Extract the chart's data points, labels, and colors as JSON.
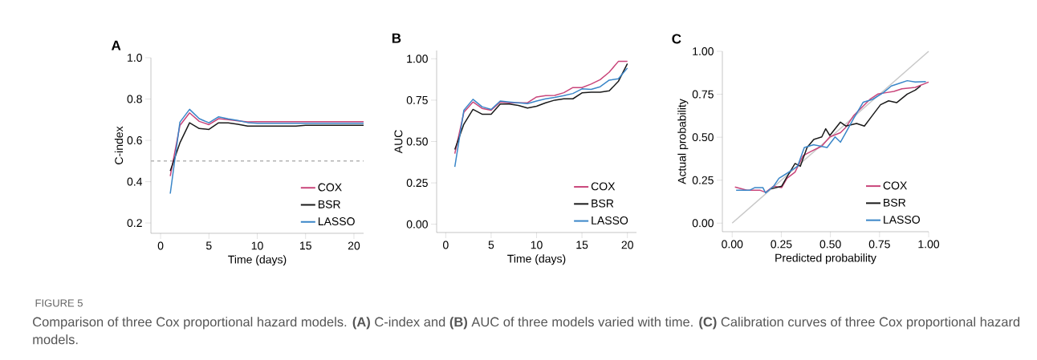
{
  "chart_data": [
    {
      "type": "line",
      "title": "A",
      "xlabel": "Time (days)",
      "ylabel": "C-index",
      "x": [
        1,
        2,
        3,
        4,
        5,
        6,
        7,
        8,
        9,
        10,
        11,
        12,
        13,
        14,
        15,
        16,
        17,
        18,
        19,
        20,
        21
      ],
      "series": [
        {
          "name": "COX",
          "color": "#c9457a",
          "values": [
            0.427,
            0.672,
            0.733,
            0.692,
            0.676,
            0.705,
            0.7,
            0.694,
            0.689,
            0.69,
            0.69,
            0.69,
            0.69,
            0.69,
            0.69,
            0.69,
            0.69,
            0.69,
            0.69,
            0.69,
            0.69
          ]
        },
        {
          "name": "BSR",
          "color": "#1a1a1a",
          "values": [
            0.452,
            0.588,
            0.685,
            0.657,
            0.653,
            0.685,
            0.685,
            0.678,
            0.669,
            0.669,
            0.669,
            0.669,
            0.669,
            0.669,
            0.673,
            0.673,
            0.673,
            0.673,
            0.673,
            0.673,
            0.673
          ]
        },
        {
          "name": "LASSO",
          "color": "#3a86c8",
          "values": [
            0.342,
            0.688,
            0.75,
            0.705,
            0.685,
            0.714,
            0.704,
            0.696,
            0.686,
            0.683,
            0.683,
            0.683,
            0.683,
            0.683,
            0.683,
            0.683,
            0.683,
            0.683,
            0.683,
            0.683,
            0.683
          ]
        }
      ],
      "xlim": [
        -1,
        21
      ],
      "ylim": [
        0.15,
        1.0
      ],
      "xticks": [
        0,
        5,
        10,
        15,
        20
      ],
      "yticks": [
        {
          "value": 0.2,
          "label": "0.2"
        },
        {
          "value": 0.4,
          "label": "0.4"
        },
        {
          "value": 0.6,
          "label": "0.6"
        },
        {
          "value": 0.8,
          "label": "0.8"
        },
        {
          "value": 1.0,
          "label": "1.0"
        }
      ],
      "ref_lines": [
        {
          "axis": "y",
          "value": 0.5,
          "color": "#b4b4b4",
          "line_style": "dashed"
        }
      ],
      "legend": "bottom right",
      "annotations": [
        "FIGURE 5",
        "Comparison of three Cox proportional hazard models. **(A)** C-index and **(B)** AUC of three models varied with time. **(C)** Calibration curves of three Cox proportional hazard models."
      ]
    },
    {
      "type": "line",
      "title": "B",
      "xlabel": "Time (days)",
      "ylabel": "AUC",
      "x": [
        1,
        2,
        3,
        4,
        5,
        6,
        7,
        8,
        9,
        10,
        11,
        12,
        13,
        14,
        15,
        16,
        17,
        18,
        19,
        20
      ],
      "series": [
        {
          "name": "COX",
          "color": "#c9457a",
          "values": [
            0.427,
            0.677,
            0.739,
            0.7,
            0.689,
            0.739,
            0.734,
            0.734,
            0.734,
            0.769,
            0.777,
            0.779,
            0.795,
            0.826,
            0.826,
            0.847,
            0.874,
            0.919,
            0.984,
            0.984
          ]
        },
        {
          "name": "BSR",
          "color": "#1a1a1a",
          "values": [
            0.452,
            0.605,
            0.694,
            0.665,
            0.665,
            0.726,
            0.726,
            0.718,
            0.702,
            0.713,
            0.734,
            0.75,
            0.758,
            0.758,
            0.794,
            0.798,
            0.798,
            0.806,
            0.863,
            0.971
          ]
        },
        {
          "name": "LASSO",
          "color": "#3a86c8",
          "values": [
            0.347,
            0.689,
            0.755,
            0.71,
            0.694,
            0.745,
            0.739,
            0.734,
            0.729,
            0.745,
            0.758,
            0.766,
            0.777,
            0.79,
            0.818,
            0.815,
            0.831,
            0.871,
            0.879,
            0.944
          ]
        }
      ],
      "xlim": [
        -1,
        21
      ],
      "ylim": [
        -0.05,
        1.05
      ],
      "xticks": [
        0,
        5,
        10,
        15,
        20
      ],
      "yticks": [
        {
          "value": 0,
          "label": "0.00"
        },
        {
          "value": 0.25,
          "label": "0.25"
        },
        {
          "value": 0.5,
          "label": "0.50"
        },
        {
          "value": 0.75,
          "label": "0.75"
        },
        {
          "value": 1.0,
          "label": "1.00"
        }
      ],
      "legend": "bottom right"
    },
    {
      "type": "line",
      "title": "C",
      "xlabel": "Predicted probability",
      "ylabel": "Actual probability",
      "series": [
        {
          "color": "#c8c8c8",
          "x": [
            0,
            1
          ],
          "values": [
            0,
            1
          ]
        },
        {
          "name": "COX",
          "color": "#c9457a",
          "x": [
            0.014,
            0.075,
            0.143,
            0.17,
            0.211,
            0.252,
            0.279,
            0.32,
            0.361,
            0.401,
            0.456,
            0.497,
            0.551,
            0.578,
            0.619,
            0.66,
            0.701,
            0.741,
            0.782,
            0.823,
            0.864,
            0.932,
            1.0
          ],
          "values": [
            0.21,
            0.191,
            0.191,
            0.179,
            0.215,
            0.207,
            0.261,
            0.297,
            0.393,
            0.417,
            0.448,
            0.502,
            0.526,
            0.557,
            0.627,
            0.673,
            0.72,
            0.751,
            0.759,
            0.767,
            0.782,
            0.79,
            0.821
          ]
        },
        {
          "name": "BSR",
          "color": "#1a1a1a",
          "x": [
            0.197,
            0.252,
            0.279,
            0.32,
            0.347,
            0.381,
            0.415,
            0.456,
            0.476,
            0.497,
            0.551,
            0.578,
            0.633,
            0.673,
            0.714,
            0.755,
            0.796,
            0.837,
            0.891,
            0.932,
            0.959
          ],
          "values": [
            0.199,
            0.215,
            0.269,
            0.347,
            0.331,
            0.44,
            0.487,
            0.502,
            0.549,
            0.51,
            0.588,
            0.565,
            0.58,
            0.565,
            0.627,
            0.689,
            0.712,
            0.701,
            0.751,
            0.774,
            0.798
          ]
        },
        {
          "name": "LASSO",
          "color": "#3a86c8",
          "x": [
            0.02,
            0.088,
            0.116,
            0.156,
            0.17,
            0.211,
            0.238,
            0.293,
            0.333,
            0.367,
            0.415,
            0.483,
            0.524,
            0.551,
            0.578,
            0.619,
            0.667,
            0.714,
            0.769,
            0.81,
            0.85,
            0.891,
            0.932,
            0.986
          ],
          "values": [
            0.191,
            0.191,
            0.207,
            0.207,
            0.176,
            0.215,
            0.261,
            0.3,
            0.331,
            0.44,
            0.456,
            0.44,
            0.502,
            0.471,
            0.526,
            0.611,
            0.704,
            0.72,
            0.759,
            0.798,
            0.813,
            0.829,
            0.821,
            0.824
          ]
        }
      ],
      "xlim": [
        -0.05,
        1.0
      ],
      "ylim": [
        -0.05,
        1.0
      ],
      "xticks": [
        {
          "value": 0,
          "label": "0.00"
        },
        {
          "value": 0.25,
          "label": "0.25"
        },
        {
          "value": 0.5,
          "label": "0.50"
        },
        {
          "value": 0.75,
          "label": "0.75"
        },
        {
          "value": 1.0,
          "label": "1.00"
        }
      ],
      "yticks": [
        {
          "value": 0,
          "label": "0.00"
        },
        {
          "value": 0.25,
          "label": "0.25"
        },
        {
          "value": 0.5,
          "label": "0.50"
        },
        {
          "value": 0.75,
          "label": "0.75"
        },
        {
          "value": 1.0,
          "label": "1.00"
        }
      ],
      "legend": "bottom right"
    }
  ]
}
